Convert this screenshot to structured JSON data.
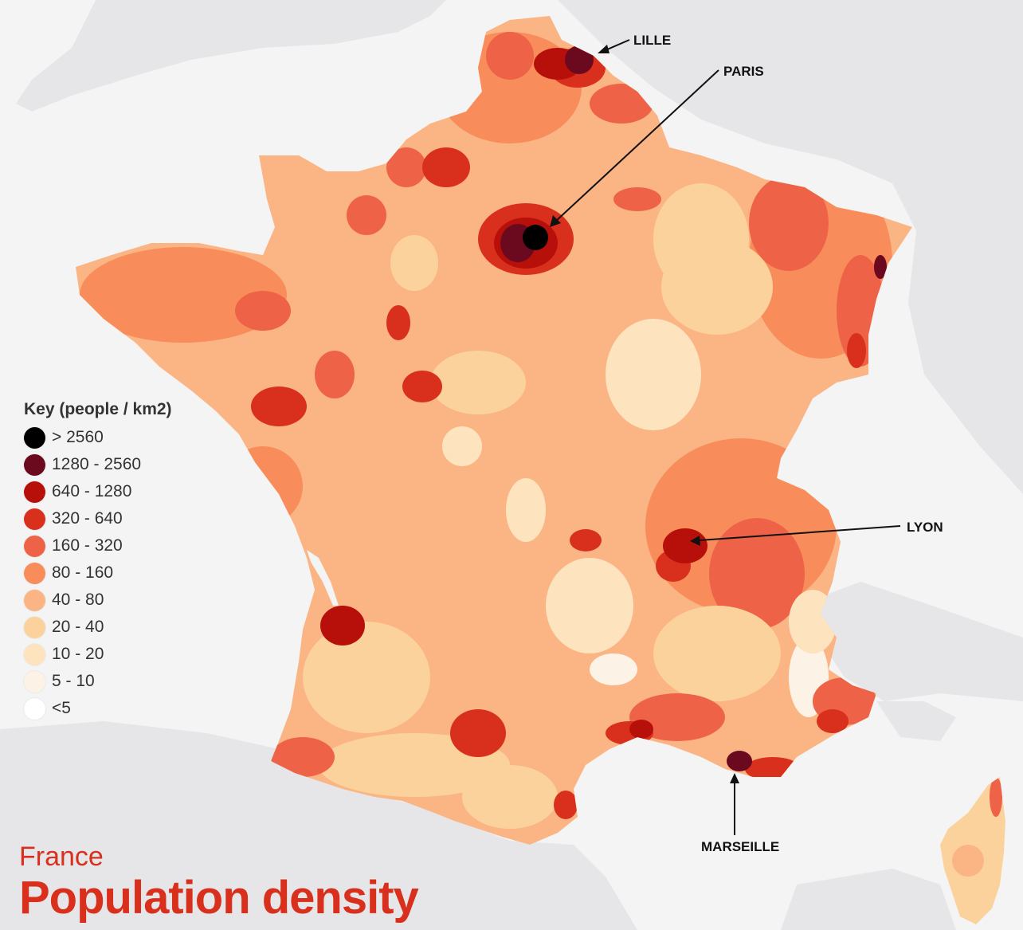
{
  "title": {
    "country": "France",
    "main": "Population density"
  },
  "legend": {
    "title": "Key (people / km2)",
    "items": [
      {
        "label": "> 2560",
        "color": "#000000"
      },
      {
        "label": "1280 - 2560",
        "color": "#6b0a1e"
      },
      {
        "label": "640 - 1280",
        "color": "#b70f0a"
      },
      {
        "label": "320 - 640",
        "color": "#d8301c"
      },
      {
        "label": "160 - 320",
        "color": "#ee6347"
      },
      {
        "label": "80 - 160",
        "color": "#f88d5b"
      },
      {
        "label": "40 - 80",
        "color": "#fbb584"
      },
      {
        "label": "20 - 40",
        "color": "#fcd29c"
      },
      {
        "label": "10 - 20",
        "color": "#fde4bf"
      },
      {
        "label": "5 - 10",
        "color": "#fdf2e6"
      },
      {
        "label": "<5",
        "color": "#ffffff"
      }
    ]
  },
  "cities": [
    {
      "name": "LILLE"
    },
    {
      "name": "PARIS"
    },
    {
      "name": "LYON"
    },
    {
      "name": "MARSEILLE"
    }
  ],
  "colors": {
    "background": "#f4f4f4",
    "neighbour_land": "#e6e6e8",
    "title_accent": "#d8301c"
  }
}
